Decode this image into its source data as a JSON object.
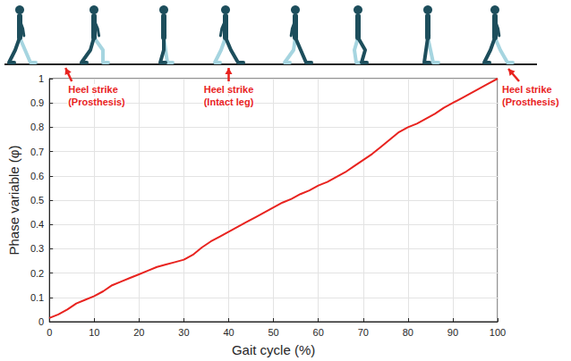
{
  "chart_data": {
    "type": "line",
    "x_label": "Gait cycle (%)",
    "y_label": "Phase variable (φ)",
    "x": [
      0,
      2,
      4,
      6,
      8,
      10,
      12,
      14,
      16,
      18,
      20,
      22,
      24,
      26,
      28,
      30,
      31,
      32,
      34,
      36,
      38,
      40,
      42,
      44,
      46,
      48,
      50,
      52,
      54,
      56,
      58,
      60,
      62,
      64,
      66,
      68,
      70,
      72,
      74,
      76,
      78,
      80,
      82,
      84,
      86,
      88,
      90,
      92,
      94,
      96,
      98,
      100
    ],
    "series": [
      {
        "color": "#e8231f",
        "values": [
          0.015,
          0.03,
          0.05,
          0.075,
          0.09,
          0.105,
          0.125,
          0.15,
          0.165,
          0.18,
          0.195,
          0.21,
          0.225,
          0.235,
          0.245,
          0.255,
          0.265,
          0.275,
          0.305,
          0.33,
          0.35,
          0.37,
          0.39,
          0.41,
          0.43,
          0.45,
          0.47,
          0.49,
          0.505,
          0.525,
          0.54,
          0.56,
          0.575,
          0.595,
          0.615,
          0.64,
          0.665,
          0.69,
          0.72,
          0.75,
          0.78,
          0.8,
          0.815,
          0.835,
          0.855,
          0.88,
          0.9,
          0.92,
          0.94,
          0.96,
          0.98,
          1.0
        ]
      }
    ],
    "xlim": [
      0,
      100
    ],
    "xticks": [
      0,
      10,
      20,
      30,
      40,
      50,
      60,
      70,
      80,
      90,
      100
    ],
    "ylim": [
      0,
      1
    ],
    "yticks": [
      0,
      0.1,
      0.2,
      0.3,
      0.4,
      0.5,
      0.6,
      0.7,
      0.8,
      0.9,
      1
    ],
    "grid": true,
    "annotations": [
      {
        "x": 0,
        "label": "Heel strike",
        "sublabel": "(Prosthesis)",
        "color": "#e8231f"
      },
      {
        "x": 40,
        "label": "Heel strike",
        "sublabel": "(Intact leg)",
        "color": "#e8231f"
      },
      {
        "x": 100,
        "label": "Heel strike",
        "sublabel": "(Prosthesis)",
        "color": "#e8231f"
      }
    ]
  }
}
